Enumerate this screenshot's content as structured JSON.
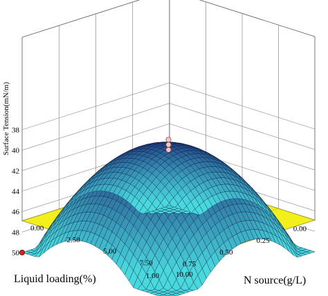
{
  "chart_data": {
    "type": "surface",
    "zlabel": "Surface Tension(mN/m)",
    "xlabel": "N source(g/L)",
    "ylabel": "Liquid loading(%)",
    "x_ticks": [
      "0.00",
      "2.50",
      "5.00",
      "7.50",
      "10.00"
    ],
    "y_ticks": [
      "0.00",
      "0.25",
      "0.50",
      "0.75",
      "1.00"
    ],
    "z_ticks": [
      "38",
      "40",
      "42",
      "44",
      "46",
      "48",
      "50"
    ],
    "xlim": [
      0,
      10
    ],
    "ylim": [
      0,
      1
    ],
    "zlim": [
      38,
      50
    ],
    "z_reversed": true,
    "grid": true,
    "surface_model": {
      "description_of_values": "surface tension at sampled design points",
      "points": [
        {
          "x": 5.0,
          "y": 0.5,
          "z": 39.6
        },
        {
          "x": 0.0,
          "y": 0.0,
          "z": 46.0
        },
        {
          "x": 10.0,
          "y": 1.0,
          "z": 49.0
        },
        {
          "x": 0.0,
          "y": 1.0,
          "z": 46.5
        },
        {
          "x": 10.0,
          "y": 0.0,
          "z": 46.0
        }
      ]
    },
    "design_points": [
      {
        "x": 5.0,
        "y": 0.5,
        "z": 39.0
      },
      {
        "x": 5.0,
        "y": 0.5,
        "z": 39.5
      },
      {
        "x": 5.0,
        "y": 0.5,
        "z": 40.0
      },
      {
        "x": 10.0,
        "y": 1.0,
        "z": 50.0
      }
    ],
    "colors": {
      "floor": "#f2ef1a",
      "contour": "#5ec4c9",
      "surface_high": "#1d2e7a",
      "surface_low": "#49d8de",
      "mesh": "#0a1a3a",
      "point_fill": "#f4c8c8",
      "point_low": "#d42020"
    }
  }
}
